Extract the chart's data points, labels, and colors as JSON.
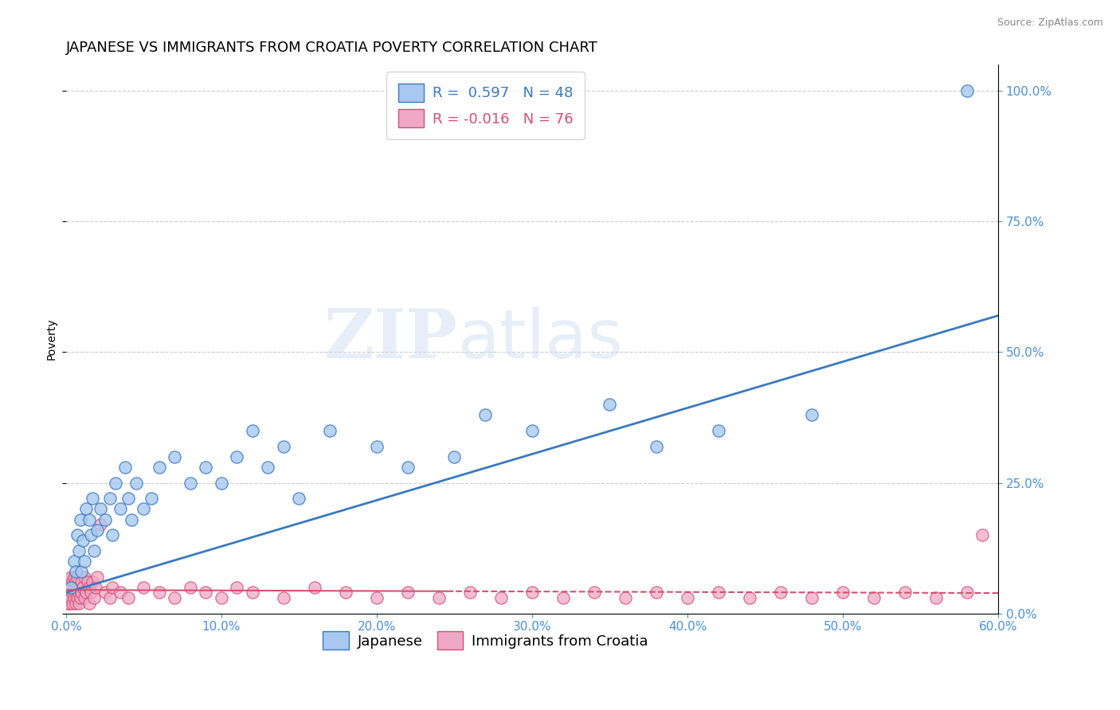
{
  "title": "JAPANESE VS IMMIGRANTS FROM CROATIA POVERTY CORRELATION CHART",
  "source": "Source: ZipAtlas.com",
  "watermark": "ZIPatlas",
  "ylabel": "Poverty",
  "xlim": [
    0.0,
    0.6
  ],
  "ylim": [
    0.0,
    1.05
  ],
  "xtick_vals": [
    0.0,
    0.1,
    0.2,
    0.3,
    0.4,
    0.5,
    0.6
  ],
  "ytick_vals": [
    0.0,
    0.25,
    0.5,
    0.75,
    1.0
  ],
  "japanese_R": 0.597,
  "japanese_N": 48,
  "croatia_R": -0.016,
  "croatia_N": 76,
  "japanese_color": "#a8c8f0",
  "croatia_color": "#f0a8c8",
  "japanese_line_color": "#3a7abf",
  "croatia_line_color": "#d45070",
  "japanese_x": [
    0.003,
    0.005,
    0.006,
    0.007,
    0.008,
    0.009,
    0.01,
    0.011,
    0.012,
    0.013,
    0.015,
    0.016,
    0.017,
    0.018,
    0.02,
    0.022,
    0.025,
    0.028,
    0.03,
    0.032,
    0.035,
    0.038,
    0.04,
    0.042,
    0.045,
    0.05,
    0.055,
    0.06,
    0.07,
    0.08,
    0.09,
    0.1,
    0.11,
    0.12,
    0.13,
    0.14,
    0.15,
    0.17,
    0.2,
    0.22,
    0.25,
    0.27,
    0.3,
    0.35,
    0.38,
    0.42,
    0.48,
    0.58
  ],
  "japanese_y": [
    0.05,
    0.1,
    0.08,
    0.15,
    0.12,
    0.18,
    0.08,
    0.14,
    0.1,
    0.2,
    0.18,
    0.15,
    0.22,
    0.12,
    0.16,
    0.2,
    0.18,
    0.22,
    0.15,
    0.25,
    0.2,
    0.28,
    0.22,
    0.18,
    0.25,
    0.2,
    0.22,
    0.28,
    0.3,
    0.25,
    0.28,
    0.25,
    0.3,
    0.35,
    0.28,
    0.32,
    0.22,
    0.35,
    0.32,
    0.28,
    0.3,
    0.38,
    0.35,
    0.4,
    0.32,
    0.35,
    0.38,
    1.0
  ],
  "croatia_x": [
    0.001,
    0.001,
    0.002,
    0.002,
    0.002,
    0.003,
    0.003,
    0.003,
    0.004,
    0.004,
    0.004,
    0.005,
    0.005,
    0.005,
    0.006,
    0.006,
    0.006,
    0.007,
    0.007,
    0.007,
    0.008,
    0.008,
    0.009,
    0.009,
    0.01,
    0.01,
    0.011,
    0.012,
    0.012,
    0.013,
    0.014,
    0.015,
    0.015,
    0.016,
    0.017,
    0.018,
    0.019,
    0.02,
    0.022,
    0.025,
    0.028,
    0.03,
    0.035,
    0.04,
    0.05,
    0.06,
    0.07,
    0.08,
    0.09,
    0.1,
    0.11,
    0.12,
    0.14,
    0.16,
    0.18,
    0.2,
    0.22,
    0.24,
    0.26,
    0.28,
    0.3,
    0.32,
    0.34,
    0.36,
    0.38,
    0.4,
    0.42,
    0.44,
    0.46,
    0.48,
    0.5,
    0.52,
    0.54,
    0.56,
    0.58,
    0.59
  ],
  "croatia_y": [
    0.02,
    0.04,
    0.03,
    0.06,
    0.02,
    0.05,
    0.03,
    0.07,
    0.04,
    0.06,
    0.02,
    0.05,
    0.03,
    0.07,
    0.04,
    0.06,
    0.02,
    0.05,
    0.03,
    0.07,
    0.04,
    0.02,
    0.05,
    0.03,
    0.06,
    0.04,
    0.05,
    0.03,
    0.07,
    0.04,
    0.06,
    0.02,
    0.05,
    0.04,
    0.06,
    0.03,
    0.05,
    0.07,
    0.17,
    0.04,
    0.03,
    0.05,
    0.04,
    0.03,
    0.05,
    0.04,
    0.03,
    0.05,
    0.04,
    0.03,
    0.05,
    0.04,
    0.03,
    0.05,
    0.04,
    0.03,
    0.04,
    0.03,
    0.04,
    0.03,
    0.04,
    0.03,
    0.04,
    0.03,
    0.04,
    0.03,
    0.04,
    0.03,
    0.04,
    0.03,
    0.04,
    0.03,
    0.04,
    0.03,
    0.04,
    0.15
  ],
  "background_color": "#ffffff",
  "grid_color": "#cccccc",
  "title_fontsize": 13,
  "axis_label_fontsize": 10,
  "tick_fontsize": 11,
  "legend_fontsize": 13,
  "right_ytick_color": "#4a90d9",
  "xtick_color": "#4a90d9"
}
